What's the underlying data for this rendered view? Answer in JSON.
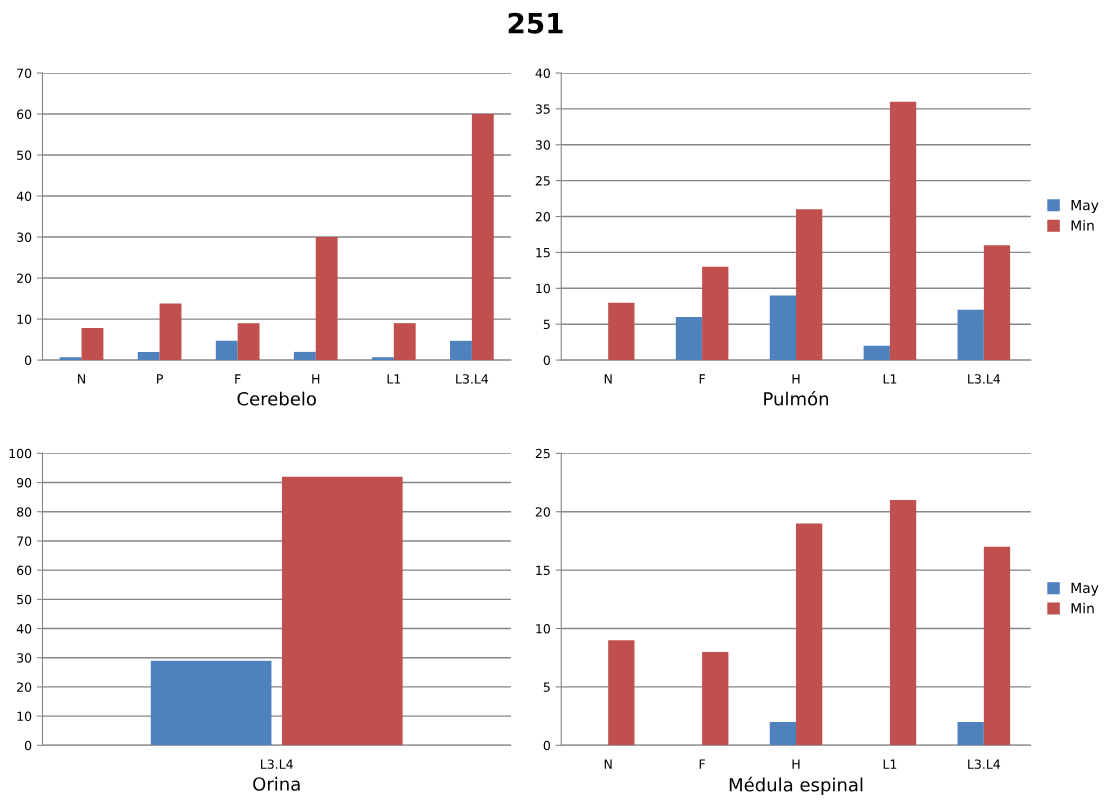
{
  "chart_data": [
    {
      "type": "bar",
      "annotations": [
        "251"
      ],
      "xlabel": "Cerebelo",
      "categories": [
        "N",
        "P",
        "F",
        "H",
        "L1",
        "L3.L4"
      ],
      "ylim": [
        0,
        70
      ],
      "yticks": [
        0,
        10,
        20,
        30,
        40,
        50,
        60,
        70
      ],
      "grid": "y",
      "series": [
        {
          "color": "#4f81bd",
          "values": [
            0.7,
            2,
            4.7,
            2,
            0.7,
            4.7
          ]
        },
        {
          "color": "#c0504d",
          "values": [
            7.8,
            13.8,
            9,
            30,
            9,
            60
          ]
        }
      ]
    },
    {
      "type": "bar",
      "xlabel": "Pulmón",
      "categories": [
        "N",
        "F",
        "H",
        "L1",
        "L3.L4"
      ],
      "ylim": [
        0,
        40
      ],
      "yticks": [
        0,
        5,
        10,
        15,
        20,
        25,
        30,
        35,
        40
      ],
      "grid": "y",
      "legend": "right",
      "series": [
        {
          "name": "May",
          "color": "#4f81bd",
          "values": [
            0,
            6,
            9,
            2,
            7
          ]
        },
        {
          "name": "Min",
          "color": "#c0504d",
          "values": [
            8,
            13,
            21,
            36,
            16
          ]
        }
      ]
    },
    {
      "type": "bar",
      "xlabel": "Orina",
      "categories": [
        "L3.L4"
      ],
      "ylim": [
        0,
        100
      ],
      "yticks": [
        0,
        10,
        20,
        30,
        40,
        50,
        60,
        70,
        80,
        90,
        100
      ],
      "grid": "y",
      "series": [
        {
          "color": "#4f81bd",
          "values": [
            29
          ]
        },
        {
          "color": "#c0504d",
          "values": [
            92
          ]
        }
      ]
    },
    {
      "type": "bar",
      "xlabel": "Médula espinal",
      "categories": [
        "N",
        "F",
        "H",
        "L1",
        "L3.L4"
      ],
      "ylim": [
        0,
        25
      ],
      "yticks": [
        0,
        5,
        10,
        15,
        20,
        25
      ],
      "grid": "y",
      "legend": "right",
      "series": [
        {
          "name": "May",
          "color": "#4f81bd",
          "values": [
            0,
            0,
            2,
            0,
            2
          ]
        },
        {
          "name": "Min",
          "color": "#c0504d",
          "values": [
            9,
            8,
            19,
            21,
            17
          ]
        }
      ]
    }
  ]
}
